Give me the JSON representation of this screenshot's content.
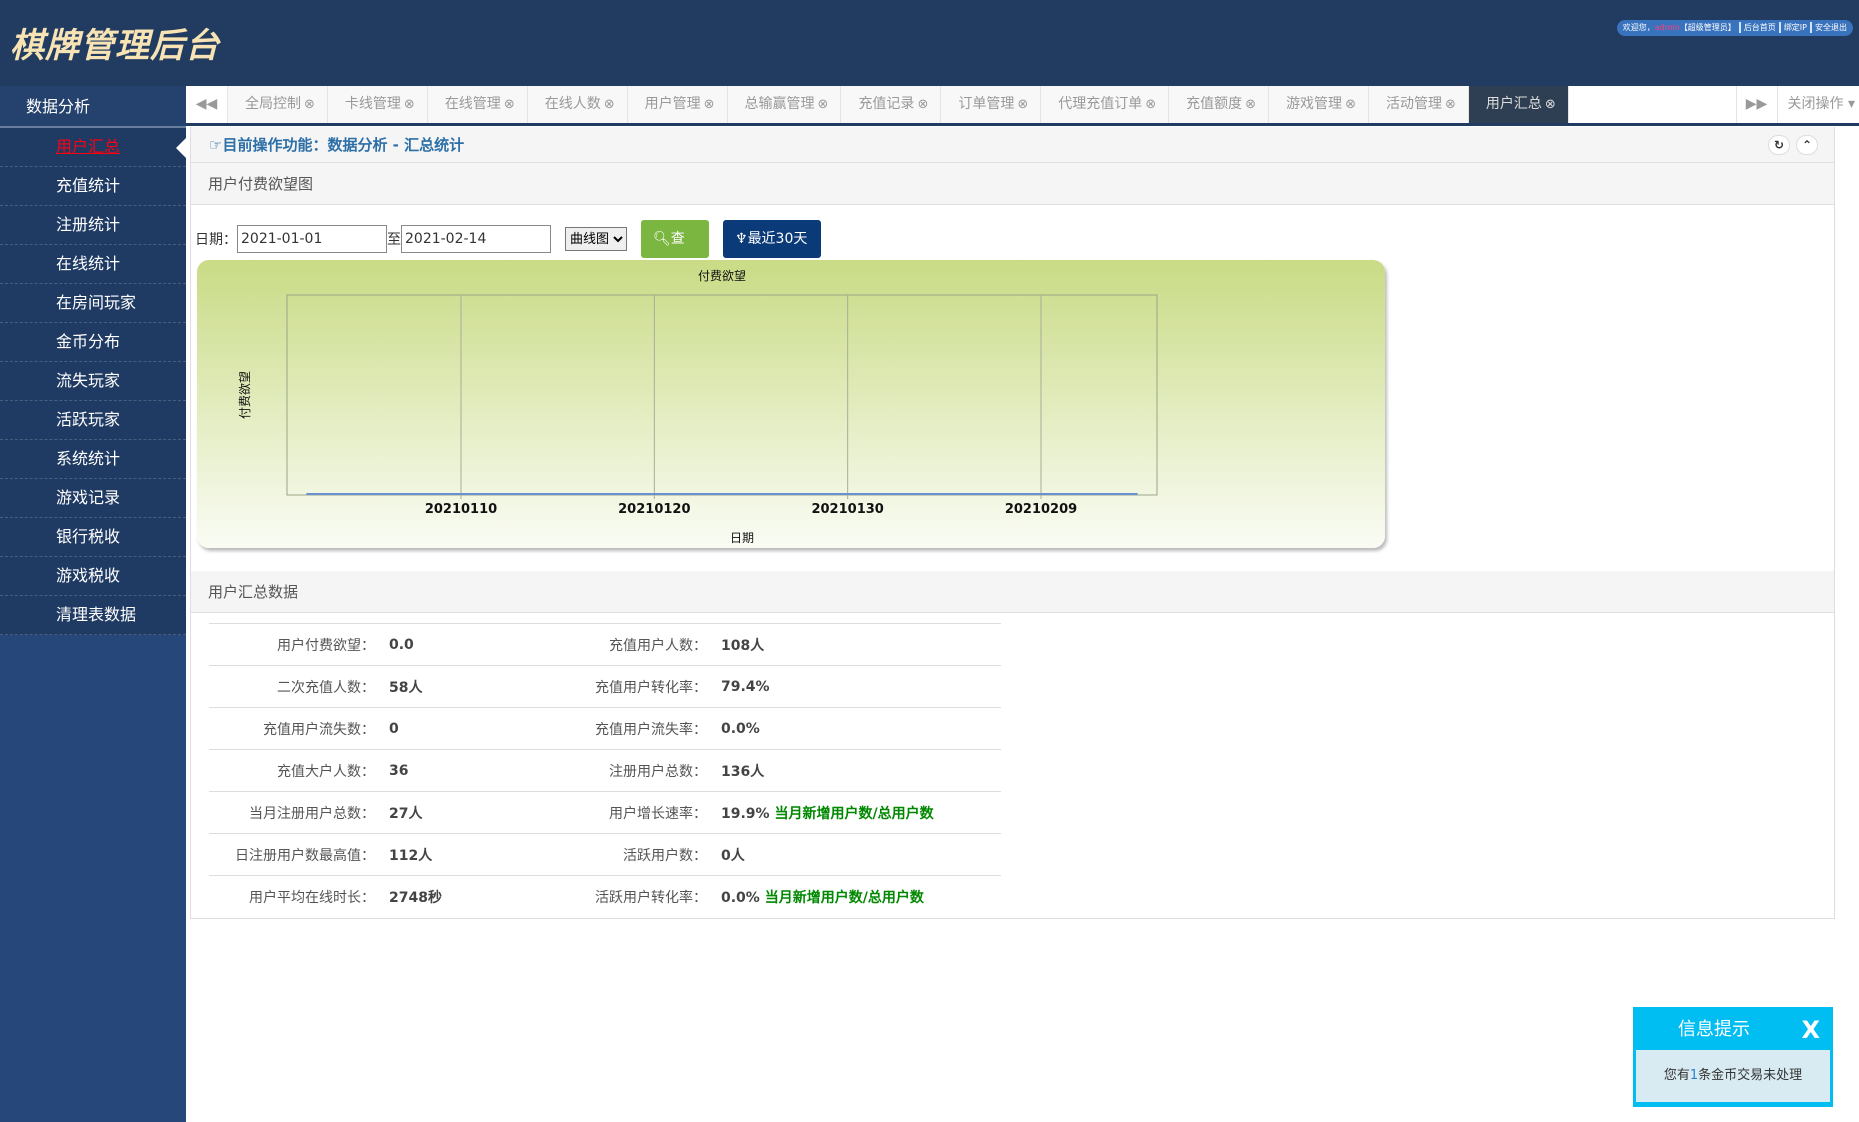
{
  "header": {
    "logo": "棋牌管理后台",
    "welcome": "欢迎您，",
    "user": "admin",
    "role": "【超级管理员】",
    "links": [
      "后台首页",
      "绑定IP",
      "安全退出"
    ]
  },
  "sidebar": {
    "section": "数据分析",
    "items": [
      "用户汇总",
      "充值统计",
      "注册统计",
      "在线统计",
      "在房间玩家",
      "金币分布",
      "流失玩家",
      "活跃玩家",
      "系统统计",
      "游戏记录",
      "银行税收",
      "游戏税收",
      "清理表数据"
    ],
    "active": 0
  },
  "tabs": {
    "items": [
      "全局控制",
      "卡线管理",
      "在线管理",
      "在线人数",
      "用户管理",
      "总输赢管理",
      "充值记录",
      "订单管理",
      "代理充值订单",
      "充值额度",
      "游戏管理",
      "活动管理",
      "用户汇总"
    ],
    "active": 12,
    "close_menu": "关闭操作"
  },
  "breadcrumb": "目前操作功能：数据分析 - 汇总统计",
  "chart_panel": {
    "title": "用户付费欲望图",
    "date_label": "日期：",
    "from": "2021-01-01",
    "to_label": "至",
    "to": "2021-02-14",
    "chart_type": "曲线图",
    "query_label": "查询",
    "recent_label": "最近30天"
  },
  "chart_data": {
    "type": "line",
    "title": "付费欲望",
    "xlabel": "日期",
    "ylabel": "付费欲望",
    "xlim": [
      "2021-01-01",
      "2021-02-15"
    ],
    "x_ticks": [
      "20210110",
      "20210120",
      "20210130",
      "20210209"
    ],
    "grid": true,
    "series": [
      {
        "x_start": "2021-01-02",
        "x_end": "2021-02-14",
        "value": 0,
        "color": "#6b8fd0"
      }
    ]
  },
  "summary": {
    "title": "用户汇总数据",
    "rows": [
      [
        {
          "label": "用户付费欲望：",
          "value": "0.0"
        },
        {
          "label": "充值用户人数：",
          "value": "108人"
        }
      ],
      [
        {
          "label": "二次充值人数：",
          "value": "58人"
        },
        {
          "label": "充值用户转化率：",
          "value": "79.4%"
        }
      ],
      [
        {
          "label": "充值用户流失数：",
          "value": "0"
        },
        {
          "label": "充值用户流失率：",
          "value": "0.0%"
        }
      ],
      [
        {
          "label": "充值大户人数：",
          "value": "36"
        },
        {
          "label": "注册用户总数：",
          "value": "136人"
        }
      ],
      [
        {
          "label": "当月注册用户总数：",
          "value": "27人"
        },
        {
          "label": "用户增长速率：",
          "value": "19.9%",
          "hint": "当月新增用户数/总用户数"
        }
      ],
      [
        {
          "label": "日注册用户数最高值：",
          "value": "112人"
        },
        {
          "label": "活跃用户数：",
          "value": "0人"
        }
      ],
      [
        {
          "label": "用户平均在线时长：",
          "value": "2748秒"
        },
        {
          "label": "活跃用户转化率：",
          "value": "0.0%",
          "hint": "当月新增用户数/总用户数"
        }
      ]
    ]
  },
  "popup": {
    "title": "信息提示",
    "close": "X",
    "pre": "您有",
    "count": "1",
    "post": "条金币交易未处理"
  }
}
